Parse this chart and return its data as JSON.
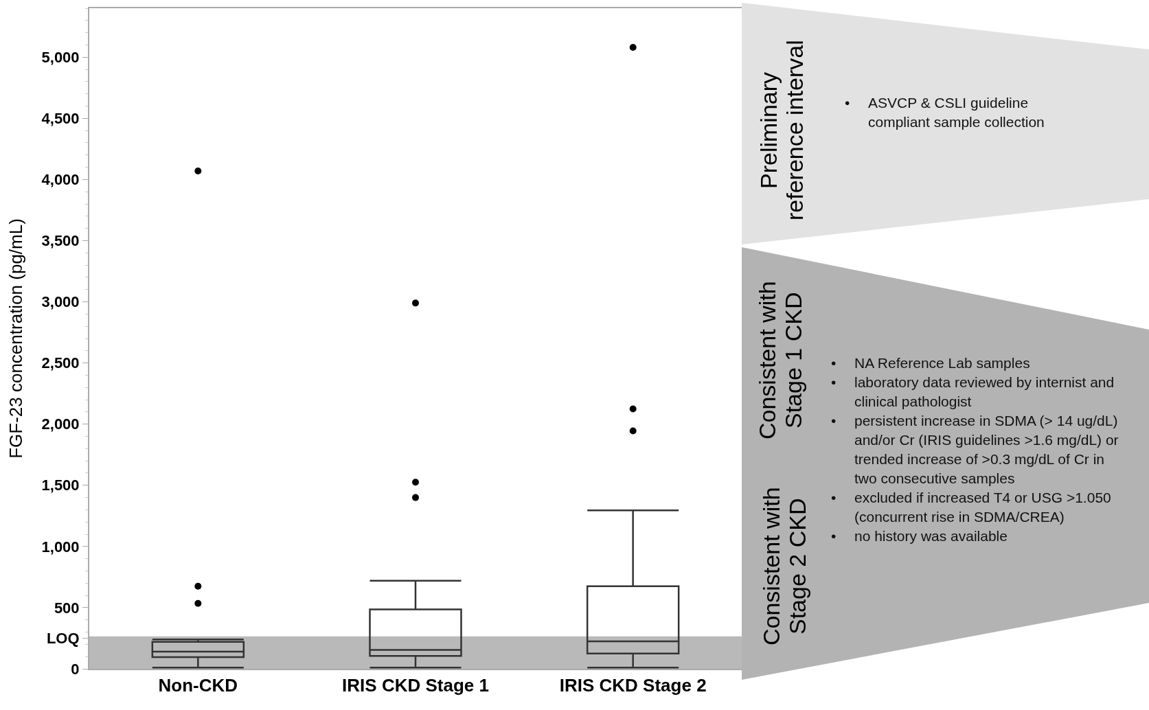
{
  "chart_data": {
    "type": "box",
    "ylabel": "FGF-23 concentration (pg/mL)",
    "categories": [
      "Non-CKD",
      "IRIS CKD Stage 1",
      "IRIS CKD Stage 2"
    ],
    "boxes": [
      {
        "low": 10,
        "q1": 95,
        "median": 140,
        "q3": 220,
        "high": 240,
        "outliers": [
          4070,
          675,
          535
        ]
      },
      {
        "low": 10,
        "q1": 105,
        "median": 155,
        "q3": 485,
        "high": 720,
        "outliers": [
          2990,
          1525,
          1400
        ]
      },
      {
        "low": 10,
        "q1": 125,
        "median": 225,
        "q3": 675,
        "high": 1295,
        "outliers": [
          5080,
          2125,
          1945
        ]
      }
    ],
    "color": "#333333",
    "marker": "circle",
    "grid": false,
    "ylim": [
      0,
      5400
    ],
    "yticks": [
      0,
      {
        "value": 250,
        "label": "LOQ"
      },
      500,
      {
        "value": 1000,
        "label": "1,000"
      },
      {
        "value": 1500,
        "label": "1,500"
      },
      {
        "value": 2000,
        "label": "2,000"
      },
      {
        "value": 2500,
        "label": "2,500"
      },
      {
        "value": 3000,
        "label": "3,000"
      },
      {
        "value": 3500,
        "label": "3,500"
      },
      {
        "value": 4000,
        "label": "4,000"
      },
      {
        "value": 4500,
        "label": "4,500"
      },
      {
        "value": 5000,
        "label": "5,000"
      }
    ],
    "bands": [
      {
        "axis": "y",
        "from": 0,
        "to": 265,
        "color": "#b9b9b9"
      }
    ],
    "annotations": [
      "Preliminary reference interval",
      "• ASVCP & CSLI guideline compliant sample collection",
      "Consistent with Stage 1 CKD",
      "Consistent with Stage 2 CKD",
      "• NA Reference Lab samples",
      "• laboratory data reviewed by internist and clinical pathologist",
      "• persistent increase in SDMA (> 14 ug/dL)  and/or Cr (IRIS guidelines >1.6 mg/dL) or trended increase of >0.3 mg/dL of Cr in two consecutive samples",
      "• excluded if increased T4 or USG >1.050 (concurrent rise in SDMA/CREA)",
      "• no history was available"
    ]
  }
}
